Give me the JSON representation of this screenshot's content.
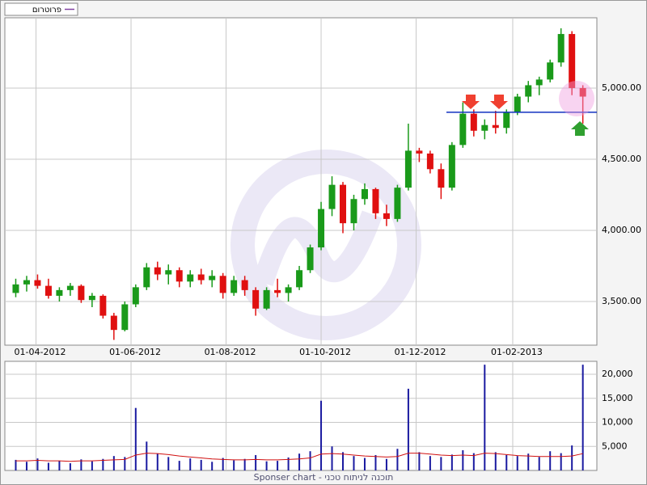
{
  "chart_data": [
    {
      "type": "candlestick",
      "legend": "פרוטרום",
      "up_color": "#1a9a1a",
      "down_color": "#e01010",
      "support_level": 4830,
      "dates": [
        "2012-03-19",
        "2012-03-26",
        "2012-04-02",
        "2012-04-09",
        "2012-04-16",
        "2012-04-23",
        "2012-04-30",
        "2012-05-07",
        "2012-05-14",
        "2012-05-21",
        "2012-05-28",
        "2012-06-04",
        "2012-06-11",
        "2012-06-18",
        "2012-06-25",
        "2012-07-02",
        "2012-07-09",
        "2012-07-16",
        "2012-07-23",
        "2012-07-30",
        "2012-08-06",
        "2012-08-13",
        "2012-08-20",
        "2012-08-27",
        "2012-09-03",
        "2012-09-10",
        "2012-09-17",
        "2012-09-24",
        "2012-10-01",
        "2012-10-08",
        "2012-10-15",
        "2012-10-22",
        "2012-10-29",
        "2012-11-05",
        "2012-11-12",
        "2012-11-19",
        "2012-11-26",
        "2012-12-03",
        "2012-12-10",
        "2012-12-17",
        "2012-12-24",
        "2012-12-31",
        "2013-01-07",
        "2013-01-14",
        "2013-01-21",
        "2013-01-28",
        "2013-02-04",
        "2013-02-11",
        "2013-02-18",
        "2013-02-25",
        "2013-03-04",
        "2013-03-11",
        "2013-03-18"
      ],
      "open": [
        3560,
        3620,
        3650,
        3610,
        3540,
        3580,
        3610,
        3510,
        3540,
        3400,
        3300,
        3480,
        3600,
        3740,
        3690,
        3720,
        3640,
        3690,
        3650,
        3680,
        3560,
        3650,
        3580,
        3450,
        3580,
        3560,
        3600,
        3720,
        3880,
        4150,
        4320,
        4050,
        4220,
        4290,
        4120,
        4080,
        4300,
        4560,
        4540,
        4430,
        4300,
        4600,
        4820,
        4700,
        4740,
        4720,
        4830,
        4940,
        5020,
        5060,
        5180,
        5380,
        5000
      ],
      "high": [
        3660,
        3680,
        3690,
        3660,
        3600,
        3630,
        3620,
        3560,
        3550,
        3420,
        3500,
        3620,
        3770,
        3780,
        3760,
        3740,
        3720,
        3730,
        3720,
        3700,
        3680,
        3680,
        3600,
        3600,
        3660,
        3620,
        3750,
        3900,
        4200,
        4380,
        4340,
        4250,
        4330,
        4300,
        4180,
        4320,
        4750,
        4580,
        4560,
        4470,
        4620,
        4900,
        4850,
        4780,
        4840,
        4850,
        4960,
        5050,
        5080,
        5200,
        5420,
        5400,
        5020
      ],
      "low": [
        3530,
        3570,
        3590,
        3520,
        3500,
        3540,
        3490,
        3460,
        3380,
        3230,
        3290,
        3460,
        3580,
        3650,
        3620,
        3600,
        3600,
        3620,
        3600,
        3520,
        3540,
        3540,
        3400,
        3440,
        3530,
        3500,
        3580,
        3700,
        3860,
        4100,
        3980,
        4000,
        4180,
        4080,
        4030,
        4060,
        4280,
        4480,
        4400,
        4220,
        4280,
        4580,
        4660,
        4640,
        4680,
        4680,
        4810,
        4900,
        4950,
        5040,
        5150,
        4950,
        4750
      ],
      "close": [
        3620,
        3650,
        3610,
        3540,
        3580,
        3610,
        3510,
        3540,
        3400,
        3300,
        3480,
        3600,
        3740,
        3690,
        3720,
        3640,
        3690,
        3650,
        3680,
        3560,
        3650,
        3580,
        3450,
        3580,
        3560,
        3600,
        3720,
        3880,
        4150,
        4320,
        4050,
        4220,
        4290,
        4120,
        4080,
        4300,
        4560,
        4540,
        4430,
        4300,
        4600,
        4820,
        4700,
        4740,
        4720,
        4830,
        4940,
        5020,
        5060,
        5180,
        5380,
        5000,
        4940
      ],
      "xlim": [
        "2012-03-12",
        "2013-03-27"
      ],
      "xticks": [
        {
          "value": "2012-04-01",
          "label": "01-04-2012"
        },
        {
          "value": "2012-06-01",
          "label": "01-06-2012"
        },
        {
          "value": "2012-08-01",
          "label": "01-08-2012"
        },
        {
          "value": "2012-10-01",
          "label": "01-10-2012"
        },
        {
          "value": "2012-12-01",
          "label": "01-12-2012"
        },
        {
          "value": "2013-02-01",
          "label": "01-02-2013"
        }
      ],
      "ylim": [
        3193,
        5494
      ],
      "yticks": [
        {
          "value": 3500,
          "label": "3,500.00"
        },
        {
          "value": 4000,
          "label": "4,000.00"
        },
        {
          "value": 4500,
          "label": "4,500.00"
        },
        {
          "value": 5000,
          "label": "5,000.00"
        }
      ],
      "grid": true
    },
    {
      "type": "volume",
      "footer": "Sponser chart - תוכנה לניתוח טכני",
      "color": "#1a1aa0",
      "ma_color": "#d01010",
      "values": [
        2200,
        1800,
        2500,
        1600,
        2000,
        1500,
        2300,
        1900,
        2400,
        3000,
        2800,
        13000,
        6000,
        3500,
        2800,
        2000,
        2500,
        2200,
        1800,
        2600,
        2100,
        2400,
        3200,
        1900,
        2000,
        2700,
        3500,
        4000,
        14500,
        5000,
        3800,
        3000,
        2600,
        3200,
        2400,
        4500,
        17000,
        3800,
        3000,
        2800,
        3300,
        4200,
        3600,
        22000,
        3800,
        3200,
        3000,
        3500,
        2800,
        4000,
        3600,
        5200,
        22000
      ],
      "moving_average": [
        2000,
        2000,
        2100,
        2000,
        2000,
        1900,
        2000,
        2000,
        2100,
        2200,
        2300,
        3200,
        3600,
        3500,
        3300,
        3000,
        2800,
        2600,
        2400,
        2300,
        2200,
        2200,
        2300,
        2200,
        2200,
        2300,
        2400,
        2600,
        3400,
        3500,
        3400,
        3200,
        3000,
        2900,
        2800,
        2900,
        3600,
        3600,
        3400,
        3200,
        3100,
        3200,
        3100,
        3600,
        3500,
        3300,
        3100,
        3000,
        2900,
        2900,
        2900,
        3000,
        3500
      ],
      "ylim": [
        0,
        22700
      ],
      "yticks": [
        {
          "value": 5000,
          "label": "5,000"
        },
        {
          "value": 10000,
          "label": "10,000"
        },
        {
          "value": 15000,
          "label": "15,000"
        },
        {
          "value": 20000,
          "label": "20,000"
        }
      ],
      "grid": true
    }
  ]
}
